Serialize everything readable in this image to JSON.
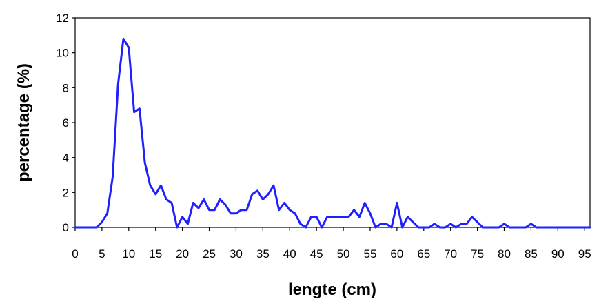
{
  "chart_data": {
    "type": "line",
    "title": "",
    "xlabel": "lengte (cm)",
    "ylabel": "percentage (%)",
    "xlim": [
      0,
      96
    ],
    "ylim": [
      0,
      12
    ],
    "x_ticks": [
      0,
      5,
      10,
      15,
      20,
      25,
      30,
      35,
      40,
      45,
      50,
      55,
      60,
      65,
      70,
      75,
      80,
      85,
      90,
      95
    ],
    "y_ticks": [
      0,
      2,
      4,
      6,
      8,
      10,
      12
    ],
    "grid": false,
    "legend": "none",
    "series": [
      {
        "color": "#1f1fff",
        "x": [
          0,
          1,
          2,
          3,
          4,
          5,
          6,
          7,
          8,
          9,
          10,
          11,
          12,
          13,
          14,
          15,
          16,
          17,
          18,
          19,
          20,
          21,
          22,
          23,
          24,
          25,
          26,
          27,
          28,
          29,
          30,
          31,
          32,
          33,
          34,
          35,
          36,
          37,
          38,
          39,
          40,
          41,
          42,
          43,
          44,
          45,
          46,
          47,
          48,
          49,
          50,
          51,
          52,
          53,
          54,
          55,
          56,
          57,
          58,
          59,
          60,
          61,
          62,
          63,
          64,
          65,
          66,
          67,
          68,
          69,
          70,
          71,
          72,
          73,
          74,
          75,
          76,
          77,
          78,
          79,
          80,
          81,
          82,
          83,
          84,
          85,
          86,
          87,
          88,
          89,
          90,
          91,
          92,
          93,
          94,
          95,
          96
        ],
        "values": [
          0,
          0,
          0,
          0,
          0,
          0.3,
          0.8,
          2.9,
          8.2,
          10.8,
          10.3,
          6.6,
          6.8,
          3.7,
          2.4,
          1.9,
          2.4,
          1.6,
          1.4,
          0,
          0.6,
          0.2,
          1.4,
          1.1,
          1.6,
          1.0,
          1.0,
          1.6,
          1.3,
          0.8,
          0.8,
          1.0,
          1.0,
          1.9,
          2.1,
          1.6,
          1.9,
          2.4,
          1.0,
          1.4,
          1.0,
          0.8,
          0.2,
          0,
          0.6,
          0.6,
          0,
          0.6,
          0.6,
          0.6,
          0.6,
          0.6,
          1.0,
          0.6,
          1.4,
          0.8,
          0,
          0.2,
          0.2,
          0,
          1.4,
          0,
          0.6,
          0.3,
          0,
          0,
          0,
          0.2,
          0,
          0,
          0.2,
          0,
          0.2,
          0.2,
          0.6,
          0.3,
          0,
          0,
          0,
          0,
          0.2,
          0,
          0,
          0,
          0,
          0.2,
          0,
          0,
          0,
          0,
          0,
          0,
          0,
          0,
          0,
          0,
          0
        ]
      }
    ]
  }
}
